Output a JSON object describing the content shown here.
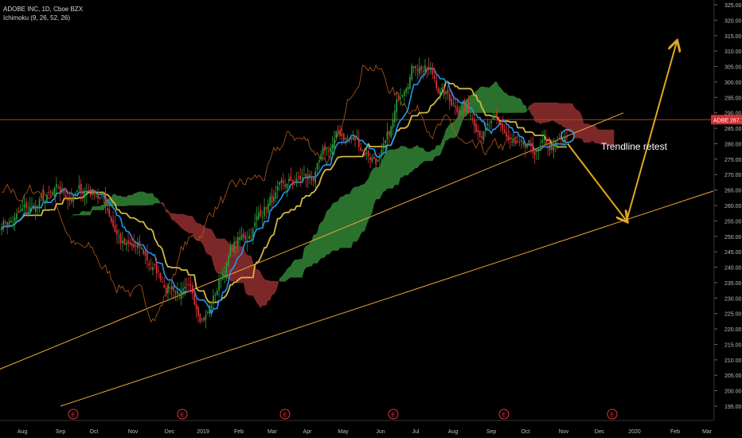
{
  "header": {
    "symbol_line": "ADOBE INC, 1D, Cboe BZX",
    "indicator_line": "Ichimoku (9, 26, 52, 26)"
  },
  "price_tag": {
    "ticker": "ADBE",
    "value": "287.79"
  },
  "annotation": {
    "text": "Trendline retest"
  },
  "colors": {
    "background": "#000000",
    "up_candle": "#2e9d3a",
    "down_candle": "#e0343a",
    "tenkan": "#2196f3",
    "kijun": "#d4b840",
    "chikou": "#b3591c",
    "cloud_bull": "#2f7d32",
    "cloud_bear": "#8b2c2c",
    "trendline": "#e8a43a",
    "arrow": "#e0a81e",
    "horizontal_line": "#a34a1a",
    "price_tag_bg": "#d32f2f",
    "retest_circle": "#4aa3e0"
  },
  "chart_data": {
    "type": "candlestick",
    "title": "ADOBE INC, 1D, Cboe BZX",
    "ylim": [
      195,
      325
    ],
    "y_ticks": [
      "325.00",
      "320.00",
      "315.00",
      "310.00",
      "305.00",
      "300.00",
      "295.00",
      "290.00",
      "285.00",
      "280.00",
      "275.00",
      "270.00",
      "265.00",
      "260.00",
      "255.00",
      "250.00",
      "245.00",
      "240.00",
      "235.00",
      "230.00",
      "225.00",
      "220.00",
      "215.00",
      "210.00",
      "205.00",
      "200.00",
      "195.00"
    ],
    "x_ticks": [
      "Aug",
      "Sep",
      "Oct",
      "Nov",
      "Dec",
      "2019",
      "Feb",
      "Mar",
      "Apr",
      "May",
      "Jun",
      "Jul",
      "Aug",
      "Sep",
      "Oct",
      "Nov",
      "Dec",
      "2020",
      "Feb",
      "Mar"
    ],
    "earnings_marker": "E",
    "earnings_months": [
      "Sep",
      "Dec",
      "Mar",
      "Jun",
      "Sep",
      "Dec"
    ],
    "price_path": {
      "months": [
        "Aug",
        "Sep",
        "Oct",
        "Nov",
        "Dec",
        "2019",
        "Feb",
        "Mar",
        "Apr",
        "May",
        "Jun",
        "Jul",
        "Aug",
        "Sep",
        "Oct",
        "Nov"
      ],
      "close_approx": [
        255,
        262,
        265,
        245,
        235,
        226,
        248,
        262,
        268,
        282,
        276,
        308,
        294,
        286,
        275,
        279
      ]
    },
    "horizontal_level": 287.79,
    "trendlines": [
      {
        "name": "upper",
        "from": [
          "Aug",
          207
        ],
        "to": [
          "Dec",
          290
        ]
      },
      {
        "name": "lower",
        "from": [
          "Sep",
          195
        ],
        "to": [
          "Mar",
          264
        ]
      }
    ],
    "projection": [
      {
        "from": [
          "Nov",
          280
        ],
        "to": [
          "Dec",
          255
        ]
      },
      {
        "from": [
          "Dec",
          255
        ],
        "to": [
          "Feb",
          313
        ]
      }
    ]
  }
}
